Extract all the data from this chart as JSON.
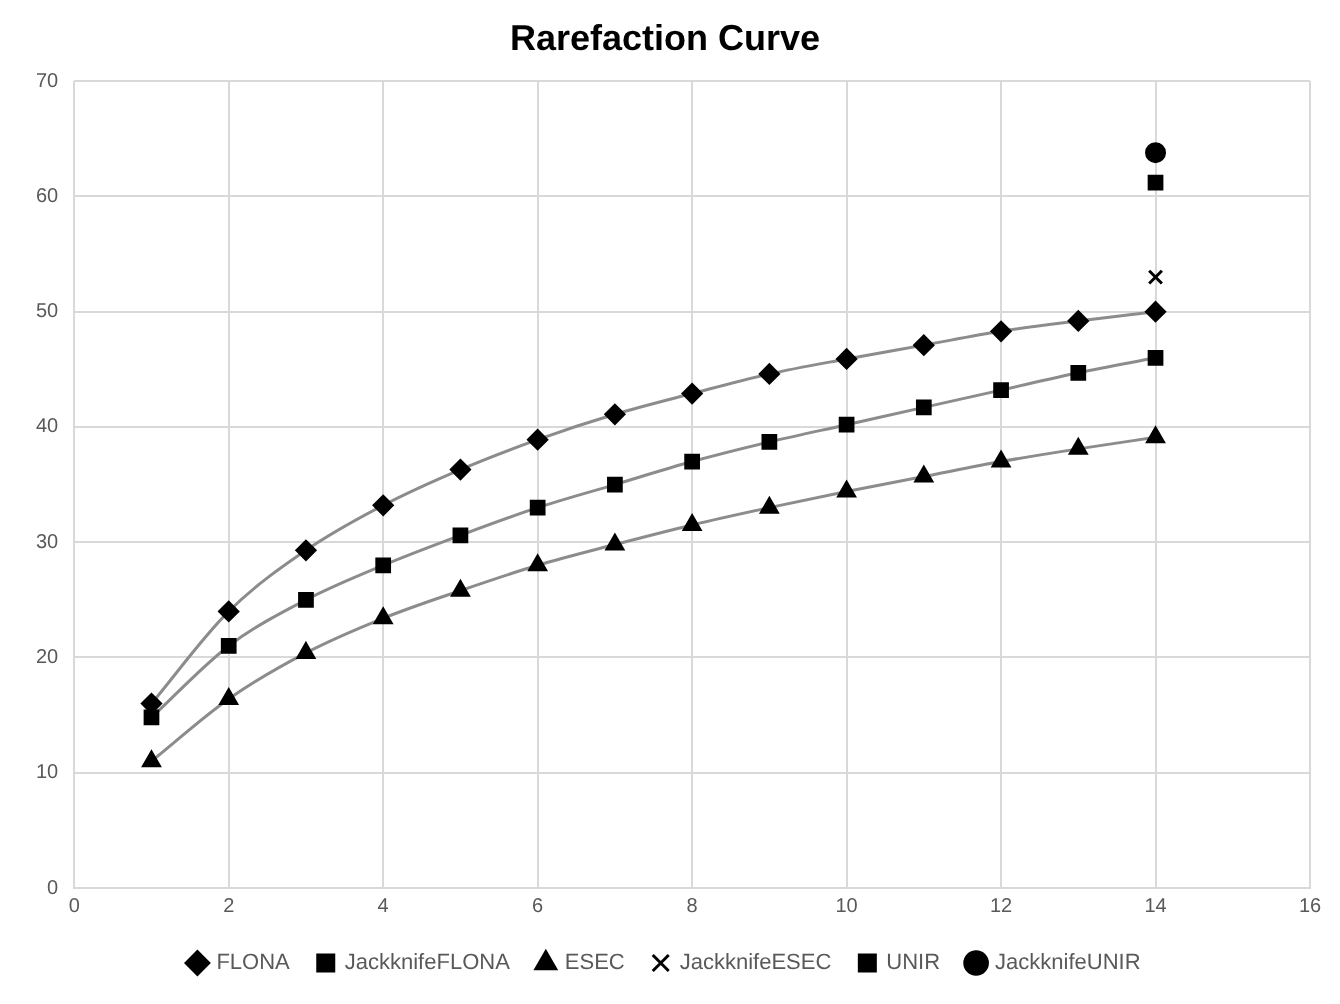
{
  "chart_data": {
    "type": "line",
    "title": "Rarefaction Curve",
    "x": [
      1,
      2,
      3,
      4,
      5,
      6,
      7,
      8,
      9,
      10,
      11,
      12,
      13,
      14
    ],
    "series": [
      {
        "name": "FLONA",
        "color": "#000000",
        "marker": "diamond",
        "values": [
          16,
          24,
          29.3,
          33.2,
          36.3,
          38.9,
          41.1,
          42.9,
          44.6,
          45.9,
          47.1,
          48.3,
          49.2,
          50.0
        ]
      },
      {
        "name": "JackknifeFLONA",
        "type": "scatter",
        "color": "#000000",
        "marker": "square",
        "values": [
          null,
          null,
          null,
          null,
          null,
          null,
          null,
          null,
          null,
          null,
          null,
          null,
          null,
          61.2
        ]
      },
      {
        "name": "ESEC",
        "color": "#000000",
        "marker": "triangle",
        "values": [
          11,
          16.4,
          20.4,
          23.4,
          25.8,
          28,
          29.8,
          31.5,
          33,
          34.4,
          35.7,
          37,
          38.1,
          39.1
        ]
      },
      {
        "name": "JackknifeESEC",
        "type": "scatter",
        "color": "#000000",
        "marker": "cross",
        "values": [
          null,
          null,
          null,
          null,
          null,
          null,
          null,
          null,
          null,
          null,
          null,
          null,
          null,
          53
        ]
      },
      {
        "name": "UNIR",
        "color": "#000000",
        "marker": "square",
        "values": [
          14.8,
          21,
          25,
          28,
          30.6,
          33,
          35,
          37,
          38.7,
          40.2,
          41.7,
          43.2,
          44.7,
          46
        ]
      },
      {
        "name": "JackknifeUNIR",
        "type": "scatter",
        "color": "#000000",
        "marker": "circle",
        "values": [
          null,
          null,
          null,
          null,
          null,
          null,
          null,
          null,
          null,
          null,
          null,
          null,
          null,
          63.8
        ]
      }
    ],
    "xlim": [
      0,
      16
    ],
    "xticks": [
      0,
      2,
      4,
      6,
      8,
      10,
      12,
      14,
      16
    ],
    "ylim": [
      0,
      70
    ],
    "yticks": [
      0,
      10,
      20,
      30,
      40,
      50,
      60,
      70
    ],
    "grid": true,
    "legend": "bottom"
  }
}
